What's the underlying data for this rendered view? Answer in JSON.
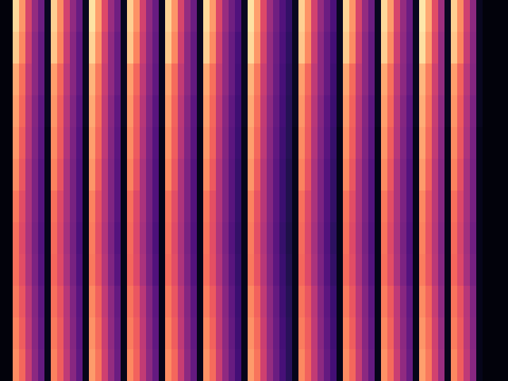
{
  "chart_data": {
    "type": "heatmap",
    "tick_labels": false,
    "zlim": [
      0,
      100
    ],
    "cells": [
      [
        2,
        2,
        92,
        78,
        58,
        42,
        32,
        6,
        90,
        76,
        57,
        41,
        31,
        6,
        94,
        80,
        60,
        43,
        33,
        6,
        90,
        77,
        57,
        41,
        31,
        6,
        91,
        78,
        58,
        42,
        32,
        6,
        92,
        79,
        59,
        43,
        33,
        25,
        6,
        94,
        80,
        60,
        44,
        33,
        25,
        18,
        6,
        90,
        77,
        57,
        42,
        32,
        24,
        6,
        91,
        78,
        58,
        42,
        32,
        6,
        92,
        79,
        58,
        42,
        32,
        6,
        95,
        82,
        61,
        44,
        6,
        90,
        76,
        56,
        40,
        6,
        2,
        2,
        2,
        2
      ],
      [
        2,
        2,
        89,
        75,
        56,
        40,
        30,
        6,
        88,
        74,
        55,
        39,
        29,
        6,
        91,
        77,
        57,
        41,
        31,
        6,
        88,
        74,
        55,
        40,
        30,
        6,
        89,
        75,
        56,
        40,
        30,
        6,
        90,
        76,
        57,
        41,
        31,
        23,
        6,
        92,
        78,
        58,
        42,
        32,
        24,
        17,
        6,
        88,
        75,
        55,
        40,
        30,
        22,
        6,
        89,
        76,
        56,
        40,
        30,
        6,
        90,
        76,
        56,
        41,
        31,
        6,
        93,
        79,
        59,
        42,
        6,
        88,
        74,
        54,
        39,
        6,
        2,
        2,
        2,
        2
      ],
      [
        2,
        2,
        82,
        70,
        53,
        40,
        30,
        6,
        80,
        68,
        52,
        39,
        29,
        6,
        84,
        72,
        55,
        41,
        31,
        6,
        80,
        68,
        52,
        39,
        29,
        6,
        81,
        69,
        53,
        40,
        30,
        6,
        82,
        70,
        54,
        41,
        31,
        22,
        6,
        84,
        72,
        55,
        42,
        31,
        23,
        16,
        6,
        80,
        68,
        52,
        40,
        30,
        21,
        6,
        81,
        69,
        53,
        40,
        30,
        6,
        82,
        70,
        53,
        40,
        30,
        6,
        85,
        73,
        56,
        42,
        6,
        80,
        67,
        51,
        38,
        6,
        2,
        2,
        2,
        2
      ],
      [
        2,
        2,
        80,
        68,
        51,
        38,
        28,
        6,
        78,
        66,
        50,
        37,
        27,
        6,
        82,
        70,
        53,
        39,
        29,
        6,
        78,
        66,
        50,
        37,
        27,
        6,
        79,
        67,
        51,
        38,
        28,
        6,
        80,
        68,
        52,
        39,
        29,
        21,
        6,
        82,
        70,
        53,
        40,
        30,
        22,
        15,
        6,
        78,
        66,
        50,
        38,
        28,
        20,
        6,
        79,
        67,
        51,
        38,
        28,
        6,
        80,
        68,
        51,
        38,
        28,
        6,
        83,
        71,
        54,
        40,
        6,
        78,
        65,
        49,
        36,
        6,
        2,
        2,
        2,
        2
      ],
      [
        2,
        2,
        78,
        66,
        50,
        37,
        27,
        5,
        76,
        65,
        49,
        36,
        26,
        5,
        80,
        68,
        52,
        38,
        28,
        5,
        76,
        65,
        49,
        36,
        26,
        5,
        77,
        66,
        50,
        37,
        27,
        5,
        78,
        67,
        51,
        38,
        28,
        20,
        5,
        80,
        68,
        52,
        39,
        29,
        21,
        15,
        5,
        76,
        65,
        49,
        37,
        27,
        19,
        5,
        77,
        66,
        50,
        37,
        27,
        5,
        78,
        66,
        50,
        37,
        27,
        5,
        81,
        69,
        53,
        39,
        5,
        76,
        64,
        48,
        35,
        5,
        2,
        2,
        2,
        2
      ],
      [
        2,
        2,
        76,
        64,
        48,
        36,
        26,
        5,
        74,
        63,
        47,
        35,
        25,
        5,
        78,
        66,
        50,
        37,
        27,
        5,
        74,
        63,
        47,
        35,
        25,
        5,
        75,
        64,
        48,
        36,
        26,
        5,
        76,
        65,
        49,
        37,
        27,
        19,
        5,
        78,
        66,
        50,
        38,
        28,
        20,
        14,
        5,
        74,
        63,
        47,
        36,
        26,
        18,
        5,
        75,
        64,
        48,
        36,
        26,
        5,
        76,
        64,
        48,
        36,
        26,
        5,
        79,
        67,
        51,
        38,
        5,
        74,
        62,
        46,
        34,
        5,
        2,
        2,
        2,
        2
      ],
      [
        2,
        2,
        72,
        61,
        48,
        36,
        26,
        5,
        70,
        60,
        47,
        35,
        25,
        5,
        74,
        63,
        50,
        37,
        27,
        5,
        70,
        60,
        47,
        35,
        25,
        5,
        71,
        61,
        48,
        36,
        26,
        5,
        72,
        62,
        49,
        37,
        27,
        19,
        5,
        74,
        63,
        50,
        38,
        28,
        20,
        14,
        5,
        70,
        60,
        47,
        36,
        26,
        18,
        5,
        71,
        61,
        48,
        36,
        26,
        5,
        72,
        61,
        48,
        36,
        26,
        5,
        75,
        64,
        51,
        38,
        5,
        70,
        59,
        46,
        34,
        5,
        2,
        2,
        2,
        2
      ],
      [
        2,
        2,
        70,
        60,
        47,
        35,
        25,
        5,
        69,
        59,
        46,
        34,
        24,
        5,
        73,
        62,
        49,
        36,
        26,
        5,
        69,
        59,
        46,
        34,
        24,
        5,
        70,
        60,
        47,
        35,
        25,
        5,
        71,
        61,
        48,
        36,
        26,
        18,
        5,
        73,
        62,
        49,
        37,
        27,
        19,
        13,
        5,
        69,
        59,
        46,
        35,
        25,
        17,
        5,
        70,
        60,
        47,
        35,
        25,
        5,
        71,
        60,
        47,
        35,
        25,
        5,
        74,
        63,
        50,
        37,
        5,
        69,
        58,
        45,
        33,
        5,
        2,
        2,
        2,
        2
      ],
      [
        2,
        2,
        70,
        61,
        48,
        36,
        26,
        5,
        68,
        60,
        47,
        35,
        25,
        5,
        72,
        63,
        50,
        37,
        27,
        5,
        68,
        60,
        47,
        35,
        25,
        5,
        69,
        61,
        48,
        36,
        26,
        5,
        70,
        62,
        49,
        37,
        27,
        19,
        5,
        72,
        63,
        50,
        38,
        28,
        20,
        14,
        5,
        68,
        60,
        47,
        36,
        26,
        18,
        5,
        69,
        61,
        48,
        36,
        26,
        5,
        70,
        61,
        48,
        36,
        26,
        5,
        73,
        64,
        51,
        38,
        5,
        68,
        59,
        46,
        34,
        5,
        2,
        2,
        2,
        2
      ],
      [
        2,
        2,
        72,
        64,
        51,
        38,
        28,
        5,
        70,
        63,
        50,
        37,
        27,
        5,
        75,
        67,
        53,
        40,
        30,
        5,
        71,
        64,
        51,
        38,
        28,
        5,
        72,
        64,
        51,
        38,
        28,
        5,
        73,
        65,
        52,
        39,
        29,
        20,
        5,
        75,
        67,
        53,
        40,
        30,
        21,
        15,
        5,
        71,
        64,
        51,
        38,
        28,
        20,
        5,
        72,
        64,
        51,
        38,
        28,
        5,
        73,
        65,
        52,
        39,
        29,
        5,
        76,
        68,
        54,
        40,
        5,
        71,
        63,
        50,
        37,
        5,
        2,
        2,
        2,
        2
      ],
      [
        2,
        2,
        74,
        66,
        52,
        39,
        29,
        5,
        72,
        65,
        51,
        38,
        28,
        5,
        77,
        69,
        55,
        41,
        31,
        5,
        73,
        66,
        52,
        39,
        29,
        5,
        74,
        66,
        52,
        39,
        29,
        5,
        75,
        67,
        53,
        40,
        30,
        21,
        5,
        77,
        69,
        55,
        41,
        31,
        22,
        16,
        5,
        73,
        66,
        52,
        39,
        29,
        21,
        5,
        74,
        66,
        52,
        39,
        29,
        5,
        75,
        67,
        53,
        40,
        30,
        5,
        78,
        70,
        56,
        42,
        5,
        73,
        65,
        51,
        38,
        5,
        2,
        2,
        2,
        2
      ],
      [
        2,
        2,
        76,
        68,
        54,
        40,
        30,
        5,
        74,
        66,
        52,
        39,
        29,
        5,
        79,
        71,
        56,
        42,
        32,
        5,
        75,
        67,
        53,
        40,
        30,
        5,
        76,
        68,
        54,
        40,
        30,
        5,
        77,
        69,
        55,
        41,
        31,
        22,
        5,
        79,
        71,
        56,
        42,
        32,
        23,
        16,
        5,
        75,
        67,
        53,
        40,
        30,
        22,
        5,
        76,
        68,
        54,
        40,
        30,
        5,
        77,
        69,
        55,
        41,
        31,
        5,
        80,
        72,
        57,
        43,
        5,
        75,
        66,
        52,
        39,
        5,
        2,
        2,
        2,
        2
      ]
    ]
  }
}
